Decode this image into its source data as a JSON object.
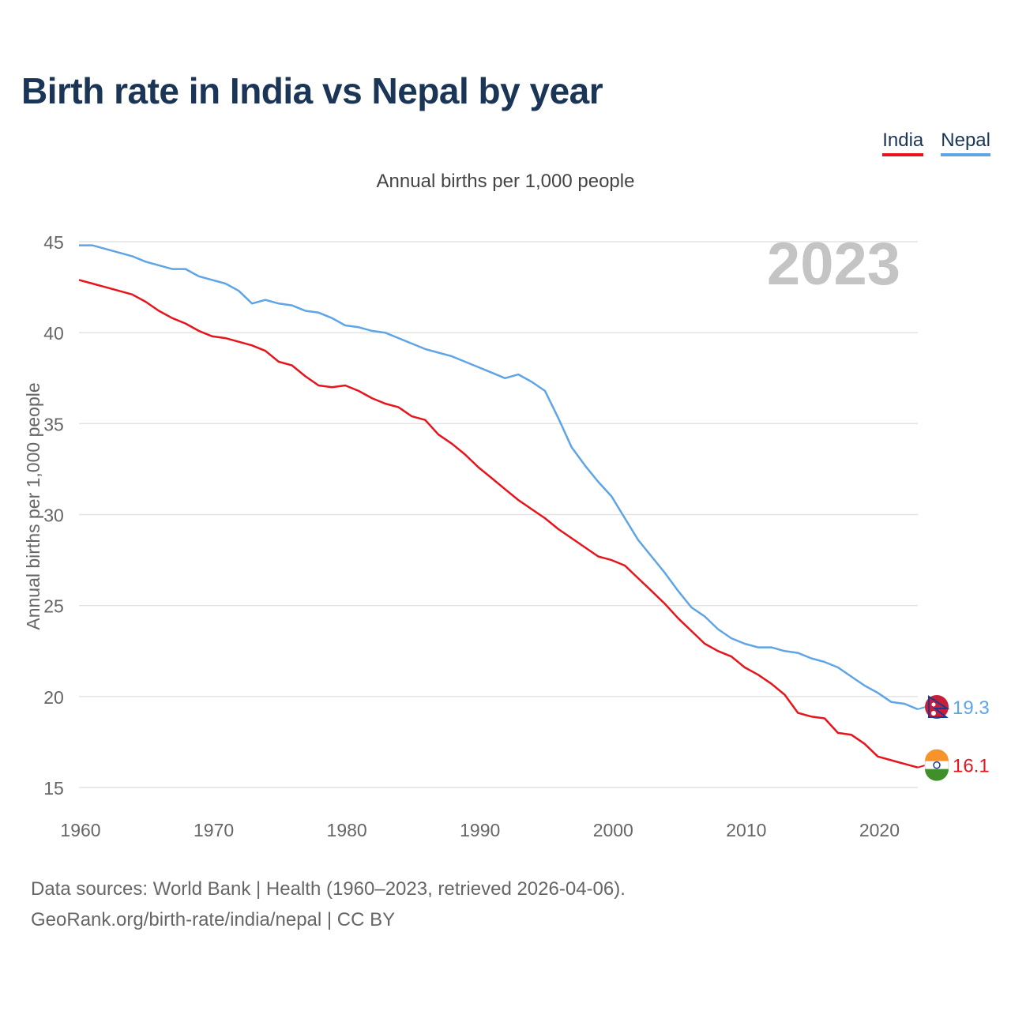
{
  "title": "Birth rate in India vs Nepal by year",
  "subtitle": "Annual births per 1,000 people",
  "year_label": "2023",
  "legend": [
    {
      "name": "India",
      "color": "#e8141b"
    },
    {
      "name": "Nepal",
      "color": "#5ea4e6"
    }
  ],
  "source_line1": "Data sources: World Bank | Health (1960–2023, retrieved 2026-04-06).",
  "source_line2": "GeoRank.org/birth-rate/india/nepal | CC BY",
  "chart_data": {
    "type": "line",
    "title": "Birth rate in India vs Nepal by year",
    "ylabel": "Annual births per 1,000 people",
    "xlabel": "",
    "xlim": [
      1960,
      2023
    ],
    "ylim": [
      15,
      45
    ],
    "yticks": [
      15,
      20,
      25,
      30,
      35,
      40,
      45
    ],
    "xticks": [
      1960,
      1970,
      1980,
      1990,
      2000,
      2010,
      2020
    ],
    "grid": true,
    "x": [
      1960,
      1961,
      1962,
      1963,
      1964,
      1965,
      1966,
      1967,
      1968,
      1969,
      1970,
      1971,
      1972,
      1973,
      1974,
      1975,
      1976,
      1977,
      1978,
      1979,
      1980,
      1981,
      1982,
      1983,
      1984,
      1985,
      1986,
      1987,
      1988,
      1989,
      1990,
      1991,
      1992,
      1993,
      1994,
      1995,
      1996,
      1997,
      1998,
      1999,
      2000,
      2001,
      2002,
      2003,
      2004,
      2005,
      2006,
      2007,
      2008,
      2009,
      2010,
      2011,
      2012,
      2013,
      2014,
      2015,
      2016,
      2017,
      2018,
      2019,
      2020,
      2021,
      2022,
      2023
    ],
    "series": [
      {
        "name": "India",
        "color": "#e8141b",
        "end_label": "16.1",
        "values": [
          42.9,
          42.7,
          42.5,
          42.3,
          42.1,
          41.7,
          41.2,
          40.8,
          40.5,
          40.1,
          39.8,
          39.7,
          39.5,
          39.3,
          39.0,
          38.4,
          38.2,
          37.6,
          37.1,
          37.0,
          37.1,
          36.8,
          36.4,
          36.1,
          35.9,
          35.4,
          35.2,
          34.4,
          33.9,
          33.3,
          32.6,
          32.0,
          31.4,
          30.8,
          30.3,
          29.8,
          29.2,
          28.7,
          28.2,
          27.7,
          27.5,
          27.2,
          26.5,
          25.8,
          25.1,
          24.3,
          23.6,
          22.9,
          22.5,
          22.2,
          21.6,
          21.2,
          20.7,
          20.1,
          19.1,
          18.9,
          18.8,
          18.0,
          17.9,
          17.4,
          16.7,
          16.5,
          16.3,
          16.1
        ]
      },
      {
        "name": "Nepal",
        "color": "#5ea4e6",
        "end_label": "19.3",
        "values": [
          44.8,
          44.8,
          44.6,
          44.4,
          44.2,
          43.9,
          43.7,
          43.5,
          43.5,
          43.1,
          42.9,
          42.7,
          42.3,
          41.6,
          41.8,
          41.6,
          41.5,
          41.2,
          41.1,
          40.8,
          40.4,
          40.3,
          40.1,
          40.0,
          39.7,
          39.4,
          39.1,
          38.9,
          38.7,
          38.4,
          38.1,
          37.8,
          37.5,
          37.7,
          37.3,
          36.8,
          35.3,
          33.7,
          32.7,
          31.8,
          31.0,
          29.8,
          28.6,
          27.7,
          26.8,
          25.8,
          24.9,
          24.4,
          23.7,
          23.2,
          22.9,
          22.7,
          22.7,
          22.5,
          22.4,
          22.1,
          21.9,
          21.6,
          21.1,
          20.6,
          20.2,
          19.7,
          19.6,
          19.3
        ]
      }
    ]
  }
}
